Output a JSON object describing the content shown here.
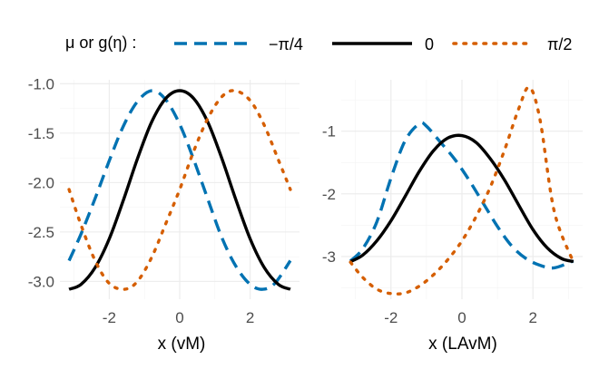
{
  "legend": {
    "title": "μ  or  g(η) :",
    "entries": [
      {
        "label": "−π/4",
        "color": "#0072B2",
        "style": "dashed"
      },
      {
        "label": "0",
        "color": "#000000",
        "style": "solid"
      },
      {
        "label": "π/2",
        "color": "#D55E00",
        "style": "dotted"
      }
    ]
  },
  "chart_data": [
    {
      "type": "line",
      "panel": "left",
      "title": "",
      "xlabel": "x (vM)",
      "ylabel": "",
      "xlim": [
        -3.4,
        3.4
      ],
      "ylim": [
        -3.18,
        -0.96
      ],
      "xticks": [
        -2,
        0,
        2
      ],
      "xtick_labels": [
        "-2",
        "0",
        "2"
      ],
      "yticks": [
        -3.0,
        -2.5,
        -2.0,
        -1.5,
        -1.0
      ],
      "ytick_labels": [
        "-3.0",
        "-2.5",
        "-2.0",
        "-1.5",
        "-1.0"
      ],
      "series": [
        {
          "name": "−π/4",
          "color": "#0072B2",
          "style": "dashed",
          "x": [
            -3.14,
            -2.8,
            -2.4,
            -2.0,
            -1.6,
            -1.2,
            -0.785,
            -0.4,
            0.0,
            0.4,
            0.8,
            1.2,
            1.6,
            2.0,
            2.356,
            2.7,
            3.14
          ],
          "y": [
            -2.79,
            -2.52,
            -2.16,
            -1.78,
            -1.43,
            -1.18,
            -1.07,
            -1.16,
            -1.41,
            -1.77,
            -2.17,
            -2.56,
            -2.85,
            -3.03,
            -3.08,
            -3.02,
            -2.79
          ]
        },
        {
          "name": "0",
          "color": "#000000",
          "style": "solid",
          "x": [
            -3.14,
            -2.8,
            -2.4,
            -2.0,
            -1.6,
            -1.2,
            -0.8,
            -0.4,
            0.0,
            0.4,
            0.8,
            1.2,
            1.6,
            2.0,
            2.4,
            2.8,
            3.14
          ],
          "y": [
            -3.08,
            -3.03,
            -2.86,
            -2.57,
            -2.18,
            -1.76,
            -1.39,
            -1.15,
            -1.07,
            -1.15,
            -1.39,
            -1.76,
            -2.18,
            -2.57,
            -2.86,
            -3.03,
            -3.08
          ]
        },
        {
          "name": "π/2",
          "color": "#D55E00",
          "style": "dotted",
          "x": [
            -3.14,
            -2.8,
            -2.4,
            -2.0,
            -1.571,
            -1.2,
            -0.8,
            -0.4,
            0.0,
            0.4,
            0.8,
            1.2,
            1.571,
            2.0,
            2.4,
            2.8,
            3.14
          ],
          "y": [
            -2.07,
            -2.43,
            -2.79,
            -3.02,
            -3.08,
            -3.0,
            -2.76,
            -2.42,
            -2.07,
            -1.68,
            -1.35,
            -1.13,
            -1.07,
            -1.17,
            -1.42,
            -1.77,
            -2.07
          ]
        }
      ]
    },
    {
      "type": "line",
      "panel": "right",
      "title": "",
      "xlabel": "x (LAvM)",
      "ylabel": "",
      "xlim": [
        -3.4,
        3.4
      ],
      "ylim": [
        -3.68,
        -0.18
      ],
      "xticks": [
        -2,
        0,
        2
      ],
      "xtick_labels": [
        "-2",
        "0",
        "2"
      ],
      "yticks": [
        -3,
        -2,
        -1
      ],
      "ytick_labels": [
        "-3",
        "-2",
        "-1"
      ],
      "series": [
        {
          "name": "−π/4",
          "color": "#0072B2",
          "style": "dashed",
          "x": [
            -3.14,
            -2.8,
            -2.4,
            -2.0,
            -1.6,
            -1.2,
            -1.0,
            -0.6,
            -0.2,
            0.2,
            0.6,
            1.0,
            1.4,
            1.8,
            2.2,
            2.6,
            3.14
          ],
          "y": [
            -3.07,
            -2.88,
            -2.45,
            -1.75,
            -1.15,
            -0.88,
            -0.92,
            -1.18,
            -1.45,
            -1.78,
            -2.15,
            -2.52,
            -2.83,
            -3.03,
            -3.14,
            -3.18,
            -3.07
          ]
        },
        {
          "name": "0",
          "color": "#000000",
          "style": "solid",
          "x": [
            -3.14,
            -2.8,
            -2.4,
            -2.0,
            -1.6,
            -1.2,
            -0.8,
            -0.4,
            0.0,
            0.4,
            0.8,
            1.2,
            1.6,
            2.0,
            2.4,
            2.8,
            3.14
          ],
          "y": [
            -3.08,
            -2.98,
            -2.75,
            -2.43,
            -2.04,
            -1.64,
            -1.31,
            -1.11,
            -1.07,
            -1.18,
            -1.44,
            -1.78,
            -2.18,
            -2.57,
            -2.86,
            -3.03,
            -3.08
          ]
        },
        {
          "name": "π/2",
          "color": "#D55E00",
          "style": "dotted",
          "x": [
            -3.14,
            -2.8,
            -2.4,
            -2.0,
            -1.6,
            -1.2,
            -0.8,
            -0.4,
            0.0,
            0.4,
            0.8,
            1.2,
            1.6,
            1.9,
            2.2,
            2.6,
            3.14
          ],
          "y": [
            -3.09,
            -3.33,
            -3.52,
            -3.59,
            -3.58,
            -3.47,
            -3.29,
            -3.05,
            -2.75,
            -2.36,
            -1.89,
            -1.3,
            -0.64,
            -0.3,
            -0.82,
            -2.28,
            -3.09
          ]
        }
      ]
    }
  ]
}
